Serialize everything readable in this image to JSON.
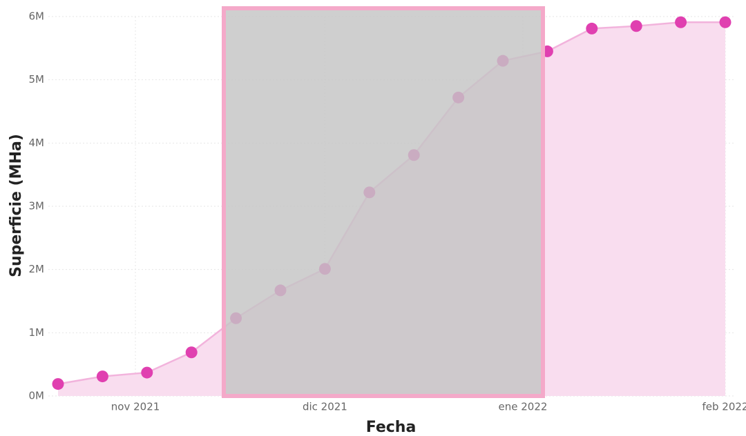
{
  "chart_data": {
    "type": "area",
    "x_label": "Fecha",
    "y_label": "Superficie (MHa)",
    "x": [
      0,
      1,
      2,
      3,
      4,
      5,
      6,
      7,
      8,
      9,
      10,
      11,
      12,
      13,
      14,
      15
    ],
    "series": [
      {
        "color": "#e040b0",
        "fill": "#f9ddef",
        "line": "#f2b3dc",
        "values": [
          190000,
          310000,
          370000,
          690000,
          1230000,
          1670000,
          2010000,
          3220000,
          3810000,
          4720000,
          5300000,
          5450000,
          5810000,
          5850000,
          5910000,
          5910000
        ]
      }
    ],
    "xlim": [
      0,
      15
    ],
    "xticks": [
      {
        "value": 1.74,
        "label": "nov 2021"
      },
      {
        "value": 6,
        "label": "dic 2021"
      },
      {
        "value": 10.45,
        "label": "ene 2022"
      },
      {
        "value": 15,
        "label": "feb 2022"
      }
    ],
    "ylim": [
      0,
      6000000
    ],
    "yticks": [
      {
        "value": 0,
        "label": "0M"
      },
      {
        "value": 1000000,
        "label": "1M"
      },
      {
        "value": 2000000,
        "label": "2M"
      },
      {
        "value": 3000000,
        "label": "3M"
      },
      {
        "value": 4000000,
        "label": "4M"
      },
      {
        "value": 5000000,
        "label": "5M"
      },
      {
        "value": 6000000,
        "label": "6M"
      }
    ],
    "grid": true
  }
}
